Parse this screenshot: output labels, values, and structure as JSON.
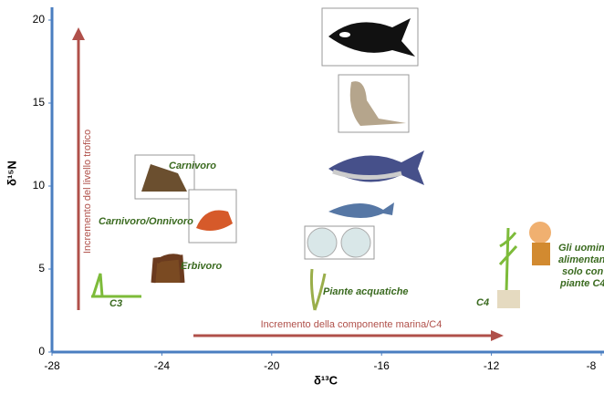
{
  "chart_data": {
    "type": "scatter",
    "x_label": "δ¹³C",
    "y_label": "δ¹⁵N",
    "xlim": [
      -28,
      -8
    ],
    "xticks": [
      -28,
      -24,
      -20,
      -16,
      -12,
      -8
    ],
    "ylim": [
      0,
      20
    ],
    "yticks": [
      0,
      5,
      10,
      15,
      20
    ],
    "annotations": [
      "Carnivoro",
      "Carnivoro/Onnivoro",
      "Erbivoro",
      "C3",
      "Piante acquatiche",
      "C4",
      "Gli uomini s",
      "alimentano",
      "solo con",
      "piante C4"
    ],
    "arrows": [
      "Incremento del livello trofico",
      "Incremento della componente marina/C4"
    ],
    "axis_color": "#4a7ec0",
    "arrow_color": "#b0504a",
    "label_color": "#3a6a1f"
  }
}
